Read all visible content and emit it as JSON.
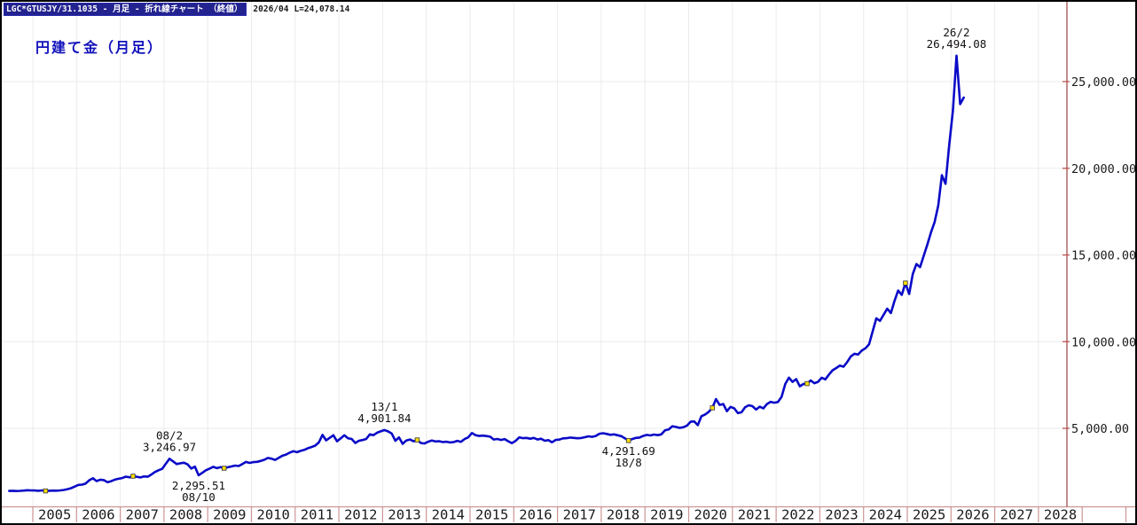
{
  "header": {
    "instrument_box": "LGC*GTUSJY/31.1035 - 月足 - 折れ線チャート （終値）",
    "date_label": "2026/04",
    "last_label": "L=24,078.14"
  },
  "title": "円建て金（月足）",
  "colors": {
    "line": "#0a0ac8",
    "grid": "#ebebeb",
    "band": "#cc9494",
    "plot_border": "#a05050",
    "tick": "#c05050",
    "axis_text": "#1a1a1a",
    "marker": "#ffdf00",
    "marker_edge": "#444444",
    "annotation": "#111111",
    "title": "#1111bb"
  },
  "chart_data": {
    "type": "line",
    "title": "円建て金（月足）",
    "series_name": "LGC*GTUSJY/31.1035 monthly close (JPY per gram)",
    "x_axis": {
      "start_year": 2005,
      "labels": [
        "2005",
        "2006",
        "2007",
        "2008",
        "2009",
        "2010",
        "2011",
        "2012",
        "2013",
        "2014",
        "2015",
        "2016",
        "2017",
        "2018",
        "2019",
        "2020",
        "2021",
        "2022",
        "2023",
        "2024",
        "2025",
        "2026",
        "2027",
        "2028"
      ]
    },
    "y_axis": {
      "ticks": [
        {
          "value": 5000,
          "label": "5,000.00"
        },
        {
          "value": 10000,
          "label": "10,000.00"
        },
        {
          "value": 15000,
          "label": "15,000.00"
        },
        {
          "value": 20000,
          "label": "20,000.00"
        },
        {
          "value": 25000,
          "label": "25,000.00"
        }
      ]
    },
    "series_start": {
      "year": 2004,
      "month": 6
    },
    "values": [
      1390,
      1400,
      1385,
      1395,
      1410,
      1430,
      1420,
      1415,
      1398,
      1420,
      1390,
      1398,
      1408,
      1402,
      1418,
      1445,
      1490,
      1545,
      1640,
      1735,
      1750,
      1820,
      2010,
      2120,
      1955,
      2040,
      2015,
      1895,
      1950,
      2040,
      2090,
      2130,
      2210,
      2175,
      2240,
      2205,
      2165,
      2230,
      2205,
      2330,
      2480,
      2580,
      2660,
      2960,
      3247,
      3090,
      2940,
      2985,
      3015,
      2920,
      2680,
      2790,
      2296,
      2430,
      2580,
      2680,
      2780,
      2705,
      2760,
      2700,
      2755,
      2800,
      2850,
      2825,
      2940,
      3060,
      3005,
      3050,
      3065,
      3120,
      3185,
      3290,
      3250,
      3180,
      3295,
      3420,
      3485,
      3600,
      3680,
      3625,
      3700,
      3755,
      3855,
      3920,
      4005,
      4185,
      4620,
      4310,
      4455,
      4600,
      4255,
      4425,
      4600,
      4425,
      4385,
      4155,
      4285,
      4325,
      4385,
      4650,
      4605,
      4750,
      4825,
      4902,
      4820,
      4700,
      4285,
      4480,
      4105,
      4300,
      4355,
      4255,
      4330,
      4155,
      4125,
      4230,
      4300,
      4245,
      4260,
      4205,
      4230,
      4185,
      4205,
      4280,
      4220,
      4380,
      4480,
      4730,
      4605,
      4560,
      4580,
      4555,
      4520,
      4355,
      4385,
      4330,
      4380,
      4255,
      4145,
      4280,
      4480,
      4430,
      4450,
      4400,
      4450,
      4355,
      4400,
      4285,
      4320,
      4195,
      4330,
      4350,
      4420,
      4430,
      4470,
      4450,
      4425,
      4440,
      4490,
      4540,
      4510,
      4560,
      4690,
      4720,
      4680,
      4625,
      4650,
      4600,
      4550,
      4425,
      4292,
      4380,
      4450,
      4470,
      4560,
      4620,
      4590,
      4640,
      4605,
      4650,
      4880,
      4940,
      5120,
      5080,
      5025,
      5060,
      5150,
      5380,
      5400,
      5185,
      5700,
      5800,
      5950,
      6180,
      6690,
      6350,
      6400,
      5985,
      6240,
      6150,
      5880,
      5925,
      6220,
      6330,
      6280,
      6085,
      6250,
      6150,
      6400,
      6530,
      6480,
      6520,
      6820,
      7560,
      7920,
      7680,
      7840,
      7425,
      7560,
      7580,
      7760,
      7605,
      7680,
      7920,
      7825,
      8105,
      8350,
      8480,
      8620,
      8555,
      8820,
      9150,
      9300,
      9255,
      9480,
      9620,
      9850,
      10600,
      11350,
      11200,
      11550,
      11900,
      11650,
      12350,
      12950,
      12700,
      13380,
      12750,
      13900,
      14480,
      14300,
      14950,
      15600,
      16300,
      16900,
      17850,
      19600,
      19100,
      21300,
      23300,
      26494,
      23700,
      24078
    ],
    "markers": [
      [
        2005.292,
        1390
      ],
      [
        2007.292,
        2240
      ],
      [
        2009.375,
        2700
      ],
      [
        2013.792,
        4330
      ],
      [
        2018.625,
        4292
      ],
      [
        2020.542,
        6180
      ],
      [
        2022.708,
        7580
      ],
      [
        2024.958,
        13380
      ]
    ],
    "annotations": [
      {
        "t": 2008.125,
        "v": 3246.97,
        "pos": "above",
        "lines": [
          "08/2",
          "3,246.97"
        ]
      },
      {
        "t": 2008.792,
        "v": 2295.51,
        "pos": "below",
        "lines": [
          "2,295.51",
          "08/10"
        ]
      },
      {
        "t": 2013.042,
        "v": 4901.84,
        "pos": "above",
        "lines": [
          "13/1",
          "4,901.84"
        ]
      },
      {
        "t": 2018.625,
        "v": 4291.69,
        "pos": "below",
        "lines": [
          "4,291.69",
          "18/8"
        ]
      },
      {
        "t": 2026.125,
        "v": 26494.08,
        "pos": "above",
        "lines": [
          "26/2",
          "26,494.08"
        ]
      }
    ]
  }
}
